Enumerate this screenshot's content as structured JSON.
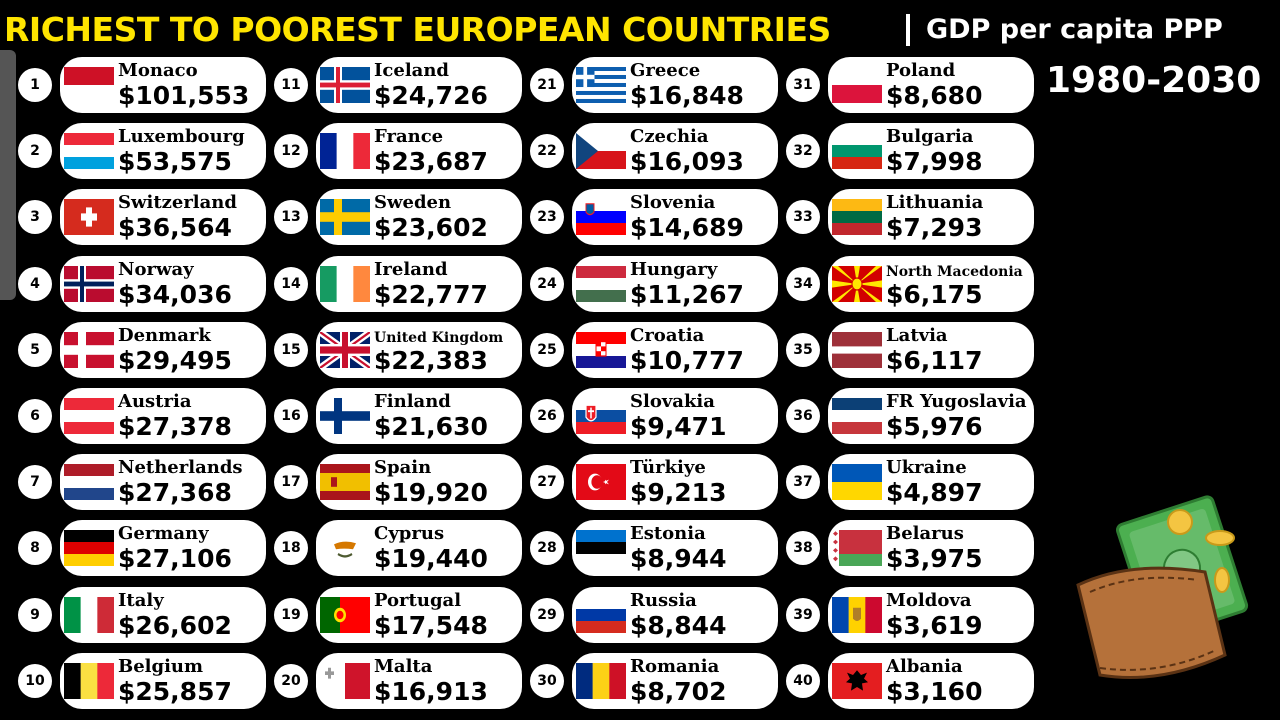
{
  "header": {
    "title": "RICHEST TO POOREST EUROPEAN COUNTRIES",
    "subtitle": "GDP per capita PPP",
    "years": "1980-2030"
  },
  "colors": {
    "title": "#FFE500",
    "background": "#000000",
    "pill": "#FFFFFF"
  },
  "countries": [
    {
      "rank": "1",
      "name": "Monaco",
      "value": "$101,553",
      "flag": "monaco-flag"
    },
    {
      "rank": "2",
      "name": "Luxembourg",
      "value": "$53,575",
      "flag": "luxembourg-flag"
    },
    {
      "rank": "3",
      "name": "Switzerland",
      "value": "$36,564",
      "flag": "switzerland-flag"
    },
    {
      "rank": "4",
      "name": "Norway",
      "value": "$34,036",
      "flag": "norway-flag"
    },
    {
      "rank": "5",
      "name": "Denmark",
      "value": "$29,495",
      "flag": "denmark-flag"
    },
    {
      "rank": "6",
      "name": "Austria",
      "value": "$27,378",
      "flag": "austria-flag"
    },
    {
      "rank": "7",
      "name": "Netherlands",
      "value": "$27,368",
      "flag": "netherlands-flag"
    },
    {
      "rank": "8",
      "name": "Germany",
      "value": "$27,106",
      "flag": "germany-flag"
    },
    {
      "rank": "9",
      "name": "Italy",
      "value": "$26,602",
      "flag": "italy-flag"
    },
    {
      "rank": "10",
      "name": "Belgium",
      "value": "$25,857",
      "flag": "belgium-flag"
    },
    {
      "rank": "11",
      "name": "Iceland",
      "value": "$24,726",
      "flag": "iceland-flag"
    },
    {
      "rank": "12",
      "name": "France",
      "value": "$23,687",
      "flag": "france-flag"
    },
    {
      "rank": "13",
      "name": "Sweden",
      "value": "$23,602",
      "flag": "sweden-flag"
    },
    {
      "rank": "14",
      "name": "Ireland",
      "value": "$22,777",
      "flag": "ireland-flag"
    },
    {
      "rank": "15",
      "name": "United Kingdom",
      "value": "$22,383",
      "flag": "united-kingdom-flag"
    },
    {
      "rank": "16",
      "name": "Finland",
      "value": "$21,630",
      "flag": "finland-flag"
    },
    {
      "rank": "17",
      "name": "Spain",
      "value": "$19,920",
      "flag": "spain-flag"
    },
    {
      "rank": "18",
      "name": "Cyprus",
      "value": "$19,440",
      "flag": "cyprus-flag"
    },
    {
      "rank": "19",
      "name": "Portugal",
      "value": "$17,548",
      "flag": "portugal-flag"
    },
    {
      "rank": "20",
      "name": "Malta",
      "value": "$16,913",
      "flag": "malta-flag"
    },
    {
      "rank": "21",
      "name": "Greece",
      "value": "$16,848",
      "flag": "greece-flag"
    },
    {
      "rank": "22",
      "name": "Czechia",
      "value": "$16,093",
      "flag": "czechia-flag"
    },
    {
      "rank": "23",
      "name": "Slovenia",
      "value": "$14,689",
      "flag": "slovenia-flag"
    },
    {
      "rank": "24",
      "name": "Hungary",
      "value": "$11,267",
      "flag": "hungary-flag"
    },
    {
      "rank": "25",
      "name": "Croatia",
      "value": "$10,777",
      "flag": "croatia-flag"
    },
    {
      "rank": "26",
      "name": "Slovakia",
      "value": "$9,471",
      "flag": "slovakia-flag"
    },
    {
      "rank": "27",
      "name": "Türkiye",
      "value": "$9,213",
      "flag": "turkiye-flag"
    },
    {
      "rank": "28",
      "name": "Estonia",
      "value": "$8,944",
      "flag": "estonia-flag"
    },
    {
      "rank": "29",
      "name": "Russia",
      "value": "$8,844",
      "flag": "russia-flag"
    },
    {
      "rank": "30",
      "name": "Romania",
      "value": "$8,702",
      "flag": "romania-flag"
    },
    {
      "rank": "31",
      "name": "Poland",
      "value": "$8,680",
      "flag": "poland-flag"
    },
    {
      "rank": "32",
      "name": "Bulgaria",
      "value": "$7,998",
      "flag": "bulgaria-flag"
    },
    {
      "rank": "33",
      "name": "Lithuania",
      "value": "$7,293",
      "flag": "lithuania-flag"
    },
    {
      "rank": "34",
      "name": "North Macedonia",
      "value": "$6,175",
      "flag": "north-macedonia-flag"
    },
    {
      "rank": "35",
      "name": "Latvia",
      "value": "$6,117",
      "flag": "latvia-flag"
    },
    {
      "rank": "36",
      "name": "FR Yugoslavia",
      "value": "$5,976",
      "flag": "fr-yugoslavia-flag"
    },
    {
      "rank": "37",
      "name": "Ukraine",
      "value": "$4,897",
      "flag": "ukraine-flag"
    },
    {
      "rank": "38",
      "name": "Belarus",
      "value": "$3,975",
      "flag": "belarus-flag"
    },
    {
      "rank": "39",
      "name": "Moldova",
      "value": "$3,619",
      "flag": "moldova-flag"
    },
    {
      "rank": "40",
      "name": "Albania",
      "value": "$3,160",
      "flag": "albania-flag"
    }
  ],
  "decoration": {
    "icon": "wallet-with-money-icon"
  }
}
